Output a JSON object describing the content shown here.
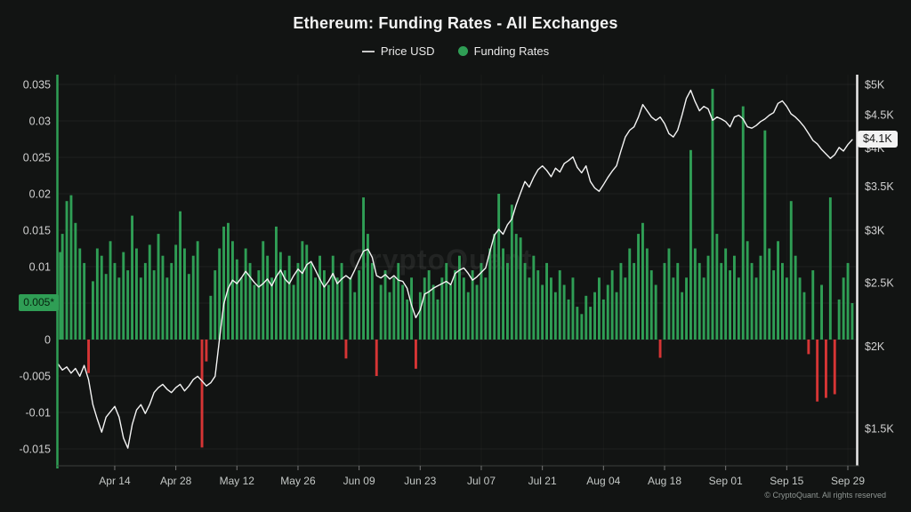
{
  "title": "Ethereum: Funding Rates - All Exchanges",
  "watermark": "CryptoQuant",
  "copyright": "© CryptoQuant. All rights reserved",
  "legend": [
    {
      "label": "Price USD",
      "marker": "line",
      "color": "#c9c9c9"
    },
    {
      "label": "Funding Rates",
      "marker": "dot",
      "color": "#2f9e55"
    }
  ],
  "annotations": {
    "left_badge": {
      "text": "0.005*",
      "bg": "#2f9e55",
      "fg": "#07220f"
    },
    "right_badge": {
      "text": "$4.1K",
      "bg": "#f2f2f2",
      "fg": "#141414"
    }
  },
  "colors": {
    "background": "#121413",
    "bar_positive": "#2f9e55",
    "bar_negative": "#d63535",
    "price_line": "#f4f4f4",
    "axis_text": "#d0d0d0",
    "x_axis_text": "#c4c8c6",
    "left_axis_line": "#2f9e55",
    "right_axis_line": "#e9e9e9",
    "baseline": "#3c403e",
    "tick": "#777777",
    "grid_h": "rgba(255,255,255,0.05)",
    "grid_v": "rgba(255,255,255,0.03)"
  },
  "chart_data": {
    "type": "mixed",
    "interval": "daily",
    "x_axis": {
      "start": "Apr 01",
      "end": "Sep 30",
      "ticks": [
        {
          "label": "Apr 14",
          "i": 13
        },
        {
          "label": "Apr 28",
          "i": 27
        },
        {
          "label": "May 12",
          "i": 41
        },
        {
          "label": "May 26",
          "i": 55
        },
        {
          "label": "Jun 09",
          "i": 69
        },
        {
          "label": "Jun 23",
          "i": 83
        },
        {
          "label": "Jul 07",
          "i": 97
        },
        {
          "label": "Jul 21",
          "i": 111
        },
        {
          "label": "Aug 04",
          "i": 125
        },
        {
          "label": "Aug 18",
          "i": 139
        },
        {
          "label": "Sep 01",
          "i": 153
        },
        {
          "label": "Sep 15",
          "i": 167
        },
        {
          "label": "Sep 29",
          "i": 181
        }
      ]
    },
    "left_axis": {
      "scale": "linear",
      "range": [
        -0.0175,
        0.0365
      ],
      "ticks": [
        {
          "label": "0.035",
          "v": 0.035
        },
        {
          "label": "0.03",
          "v": 0.03
        },
        {
          "label": "0.025",
          "v": 0.025
        },
        {
          "label": "0.02",
          "v": 0.02
        },
        {
          "label": "0.015",
          "v": 0.015
        },
        {
          "label": "0.01",
          "v": 0.01
        },
        {
          "label": "0.005",
          "v": 0.005
        },
        {
          "label": "0",
          "v": 0
        },
        {
          "label": "-0.005",
          "v": -0.005
        },
        {
          "label": "-0.01",
          "v": -0.01
        },
        {
          "label": "-0.015",
          "v": -0.015
        }
      ]
    },
    "right_axis": {
      "scale": "log",
      "unit": "USD (K)",
      "ticks": [
        {
          "label": "$5K",
          "v": 5
        },
        {
          "label": "$4.5K",
          "v": 4.5
        },
        {
          "label": "$4K",
          "v": 4
        },
        {
          "label": "$3.5K",
          "v": 3.5
        },
        {
          "label": "$3K",
          "v": 3
        },
        {
          "label": "$2.5K",
          "v": 2.5
        },
        {
          "label": "$2K",
          "v": 2
        },
        {
          "label": "$1.5K",
          "v": 1.5
        }
      ]
    },
    "series": [
      {
        "name": "Funding Rates",
        "type": "bar",
        "axis": "left",
        "latest": 0.005,
        "values": [
          0.012,
          0.0145,
          0.019,
          0.0198,
          0.016,
          0.0125,
          0.0105,
          -0.0046,
          0.008,
          0.0125,
          0.0115,
          0.009,
          0.0135,
          0.0105,
          0.0085,
          0.012,
          0.0095,
          0.017,
          0.0125,
          0.0085,
          0.0105,
          0.013,
          0.0095,
          0.0145,
          0.0115,
          0.0085,
          0.0105,
          0.013,
          0.0176,
          0.0125,
          0.009,
          0.0115,
          0.0135,
          -0.0148,
          -0.003,
          0.006,
          0.0095,
          0.0125,
          0.0155,
          0.016,
          0.0135,
          0.011,
          0.0085,
          0.0125,
          0.0105,
          0.0075,
          0.0095,
          0.0135,
          0.0115,
          0.0085,
          0.0155,
          0.012,
          0.0095,
          0.0115,
          0.0075,
          0.0105,
          0.0135,
          0.013,
          0.0105,
          0.0085,
          0.0115,
          0.0095,
          0.0075,
          0.0115,
          0.0085,
          0.0105,
          -0.0026,
          0.0085,
          0.0065,
          0.0095,
          0.0195,
          0.0145,
          0.0105,
          -0.005,
          0.0075,
          0.0095,
          0.0065,
          0.0085,
          0.0105,
          0.0075,
          0.0055,
          0.0085,
          -0.004,
          0.0065,
          0.0085,
          0.0095,
          0.0075,
          0.0055,
          0.0085,
          0.0105,
          0.0075,
          0.0095,
          0.0115,
          0.0085,
          0.0065,
          0.0095,
          0.0075,
          0.0105,
          0.0085,
          0.0125,
          0.0145,
          0.02,
          0.0125,
          0.0105,
          0.0185,
          0.0145,
          0.014,
          0.0105,
          0.0085,
          0.0115,
          0.0095,
          0.0075,
          0.0105,
          0.0085,
          0.0065,
          0.0095,
          0.0075,
          0.0055,
          0.0085,
          0.0045,
          0.0035,
          0.006,
          0.0045,
          0.0065,
          0.0085,
          0.0055,
          0.0075,
          0.0095,
          0.0065,
          0.0105,
          0.0085,
          0.0125,
          0.0105,
          0.0145,
          0.016,
          0.0125,
          0.0095,
          0.0075,
          -0.0025,
          0.0105,
          0.0125,
          0.0085,
          0.0105,
          0.0065,
          0.0085,
          0.026,
          0.0125,
          0.0105,
          0.0085,
          0.0115,
          0.0344,
          0.0145,
          0.0105,
          0.0125,
          0.0095,
          0.0115,
          0.0085,
          0.032,
          0.0135,
          0.0105,
          0.0085,
          0.0115,
          0.0287,
          0.0125,
          0.0095,
          0.0135,
          0.0105,
          0.0085,
          0.019,
          0.0115,
          0.0085,
          0.0065,
          -0.002,
          0.0095,
          -0.0085,
          0.0075,
          -0.008,
          0.0195,
          -0.0075,
          0.0055,
          0.0085,
          0.0105,
          0.005
        ]
      },
      {
        "name": "Price USD",
        "type": "line",
        "axis": "right",
        "unit_k": true,
        "latest": 4.12,
        "values": [
          1.88,
          1.84,
          1.86,
          1.82,
          1.85,
          1.8,
          1.87,
          1.78,
          1.63,
          1.55,
          1.48,
          1.56,
          1.59,
          1.62,
          1.56,
          1.45,
          1.4,
          1.52,
          1.6,
          1.63,
          1.58,
          1.63,
          1.7,
          1.73,
          1.75,
          1.72,
          1.7,
          1.73,
          1.75,
          1.71,
          1.74,
          1.78,
          1.8,
          1.77,
          1.74,
          1.76,
          1.8,
          2.05,
          2.32,
          2.45,
          2.52,
          2.49,
          2.54,
          2.6,
          2.55,
          2.5,
          2.46,
          2.49,
          2.53,
          2.47,
          2.55,
          2.61,
          2.53,
          2.49,
          2.56,
          2.62,
          2.58,
          2.66,
          2.69,
          2.61,
          2.53,
          2.46,
          2.51,
          2.58,
          2.49,
          2.53,
          2.56,
          2.53,
          2.61,
          2.7,
          2.79,
          2.81,
          2.73,
          2.56,
          2.54,
          2.57,
          2.53,
          2.56,
          2.52,
          2.51,
          2.45,
          2.31,
          2.21,
          2.27,
          2.4,
          2.42,
          2.45,
          2.47,
          2.49,
          2.51,
          2.48,
          2.58,
          2.61,
          2.63,
          2.58,
          2.52,
          2.55,
          2.59,
          2.63,
          2.79,
          2.95,
          3.01,
          2.96,
          3.06,
          3.12,
          3.28,
          3.42,
          3.56,
          3.49,
          3.61,
          3.71,
          3.76,
          3.7,
          3.62,
          3.73,
          3.68,
          3.79,
          3.83,
          3.88,
          3.74,
          3.67,
          3.76,
          3.56,
          3.48,
          3.44,
          3.52,
          3.61,
          3.69,
          3.76,
          3.96,
          4.16,
          4.26,
          4.31,
          4.46,
          4.66,
          4.56,
          4.46,
          4.41,
          4.46,
          4.36,
          4.21,
          4.16,
          4.26,
          4.49,
          4.76,
          4.9,
          4.71,
          4.56,
          4.63,
          4.59,
          4.41,
          4.46,
          4.43,
          4.39,
          4.31,
          4.46,
          4.49,
          4.43,
          4.31,
          4.29,
          4.33,
          4.39,
          4.43,
          4.49,
          4.53,
          4.68,
          4.72,
          4.63,
          4.51,
          4.46,
          4.39,
          4.31,
          4.21,
          4.11,
          4.06,
          3.98,
          3.92,
          3.86,
          3.91,
          4.01,
          3.96,
          4.05,
          4.12
        ]
      }
    ]
  }
}
